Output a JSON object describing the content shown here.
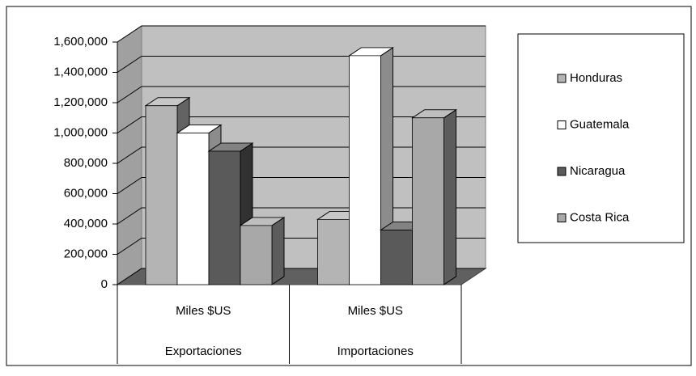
{
  "chart_data": {
    "type": "bar3d",
    "categories": [
      "Miles $US",
      "Miles $US"
    ],
    "category_groups": [
      "Exportaciones",
      "Importaciones"
    ],
    "series": [
      {
        "name": "Honduras",
        "color": "#b4b4b4",
        "values": [
          1180000,
          430000
        ]
      },
      {
        "name": "Guatemala",
        "color": "#ffffff",
        "values": [
          1000000,
          1510000
        ]
      },
      {
        "name": "Nicaragua",
        "color": "#5a5a5a",
        "values": [
          880000,
          360000
        ]
      },
      {
        "name": "Costa Rica",
        "color": "#a8a8a8",
        "values": [
          390000,
          1100000
        ]
      }
    ],
    "ylim": [
      0,
      1600000
    ],
    "yticks": [
      0,
      {
        "value": 200000,
        "label": "200,000"
      },
      {
        "value": 400000,
        "label": "400,000"
      },
      {
        "value": 600000,
        "label": "600,000"
      },
      {
        "value": 800000,
        "label": "800,000"
      },
      {
        "value": 1000000,
        "label": "1,000,000"
      },
      {
        "value": 1200000,
        "label": "1,200,000"
      },
      {
        "value": 1400000,
        "label": "1,400,000"
      },
      {
        "value": 1600000,
        "label": "1,600,000"
      }
    ],
    "grid": true,
    "legend": "right"
  }
}
